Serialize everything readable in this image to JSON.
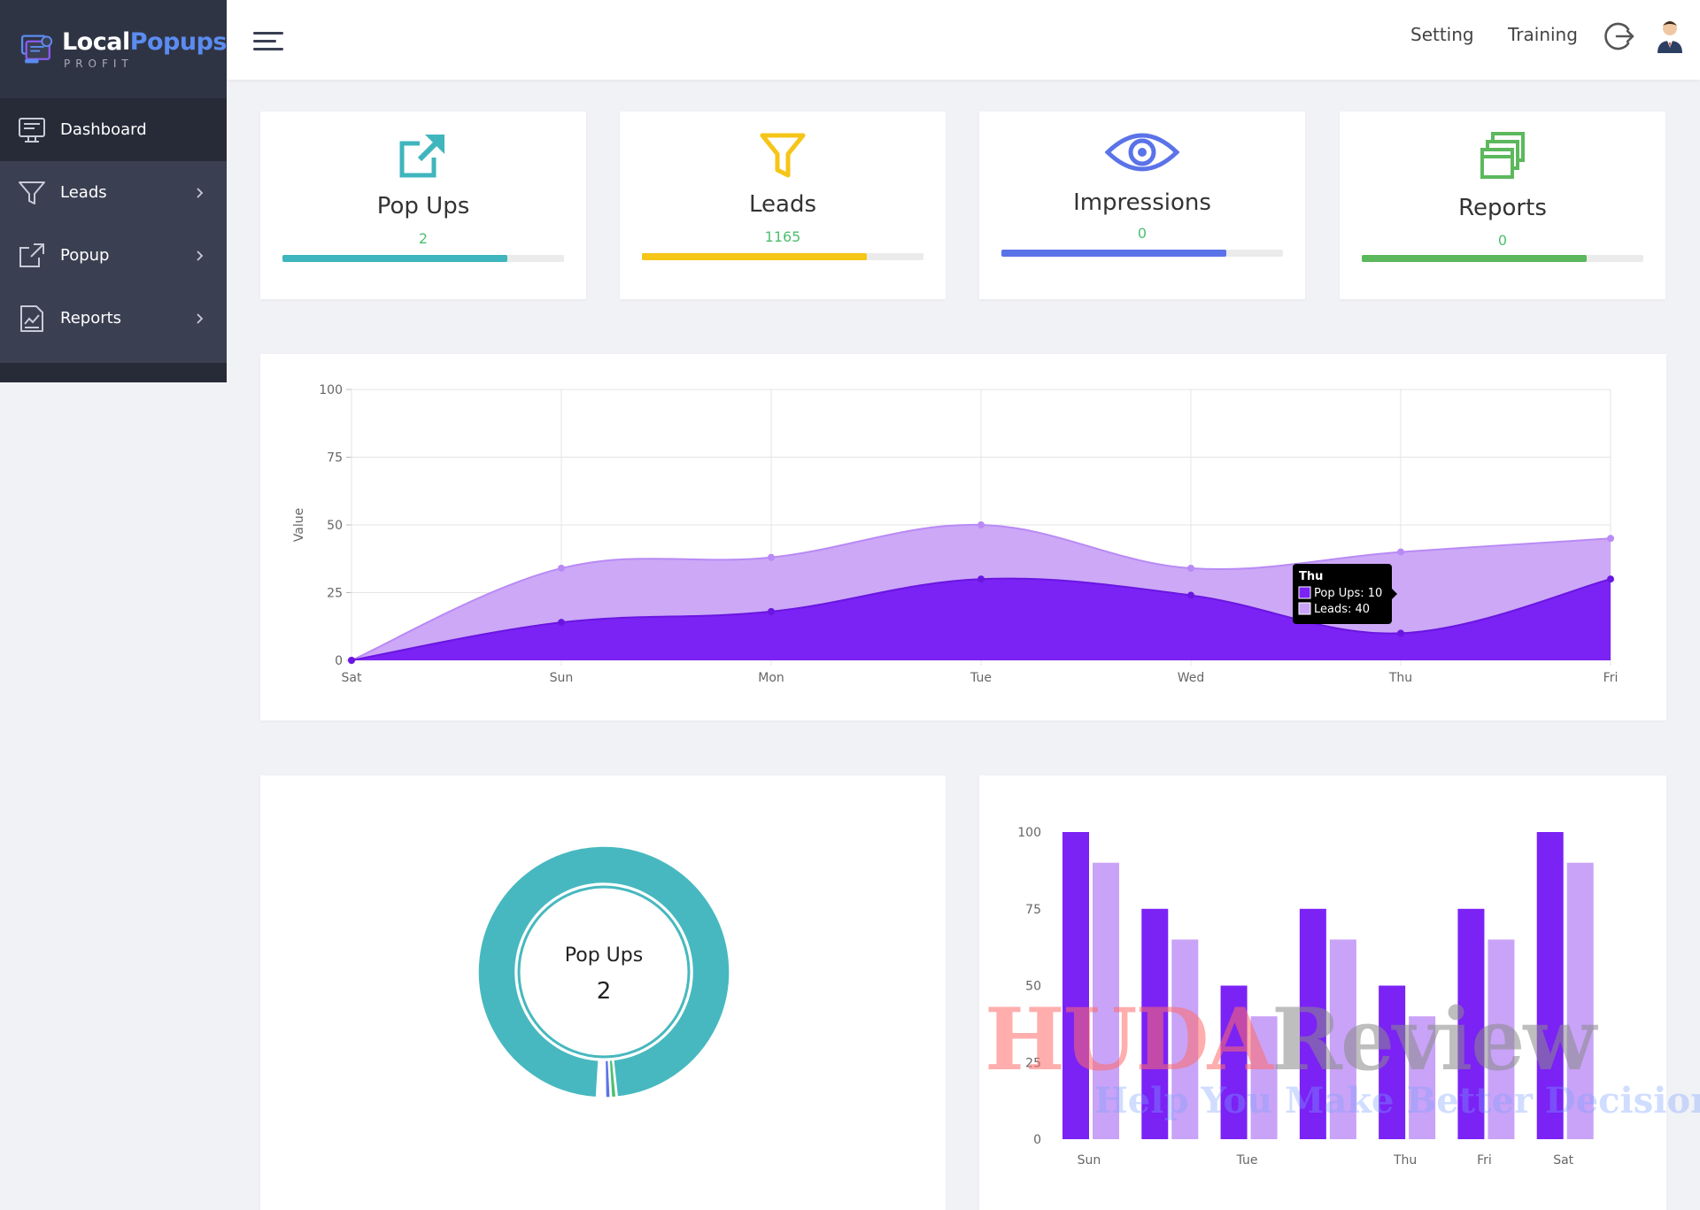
{
  "brand": {
    "name_part1": "Local",
    "name_part2": "Popups",
    "tagline": "PROFIT"
  },
  "sidebar": {
    "items": [
      {
        "label": "Dashboard",
        "icon": "monitor-icon",
        "active": true,
        "has_children": false
      },
      {
        "label": "Leads",
        "icon": "funnel-icon",
        "active": false,
        "has_children": true
      },
      {
        "label": "Popup",
        "icon": "external-link-icon",
        "active": false,
        "has_children": true
      },
      {
        "label": "Reports",
        "icon": "report-document-icon",
        "active": false,
        "has_children": true
      }
    ]
  },
  "header": {
    "menu_icon": "hamburger-icon",
    "links": [
      "Setting",
      "Training"
    ],
    "logout_icon": "logout-icon",
    "avatar_icon": "user-avatar-icon"
  },
  "stats": [
    {
      "label": "Pop Ups",
      "value": "2",
      "icon": "external-link-icon",
      "color": "#3fb5bd",
      "fill_percent": 80
    },
    {
      "label": "Leads",
      "value": "1165",
      "icon": "funnel-icon",
      "color": "#f5c518",
      "fill_percent": 80
    },
    {
      "label": "Impressions",
      "value": "0",
      "icon": "eye-icon",
      "color": "#5b73e8",
      "fill_percent": 80
    },
    {
      "label": "Reports",
      "value": "0",
      "icon": "stacked-windows-icon",
      "color": "#5cb85c",
      "fill_percent": 80
    }
  ],
  "chart_data": [
    {
      "type": "area",
      "categories": [
        "Sat",
        "Sun",
        "Mon",
        "Tue",
        "Wed",
        "Thu",
        "Fri"
      ],
      "series": [
        {
          "name": "Pop Ups",
          "values": [
            0,
            14,
            18,
            30,
            24,
            10,
            30
          ],
          "color": "#7b22f5"
        },
        {
          "name": "Leads",
          "values": [
            0,
            34,
            38,
            50,
            34,
            40,
            45
          ],
          "color": "#c9a3f7"
        }
      ],
      "ylabel": "Value",
      "ylim": [
        0,
        100
      ],
      "yticks": [
        0,
        25,
        50,
        75,
        100
      ],
      "grid": true,
      "tooltip": {
        "title": "Thu",
        "lines": [
          "Pop Ups: 10",
          "Leads: 40"
        ]
      }
    },
    {
      "type": "pie",
      "center_label": "Pop Ups",
      "center_value": "2",
      "slices": [
        {
          "name": "Pop Ups",
          "value": 2,
          "color": "#47b8bf"
        },
        {
          "name": "Leads",
          "value": 0.012,
          "color": "#4cbf6f"
        },
        {
          "name": "Impressions",
          "value": 0.012,
          "color": "#5b73e8"
        }
      ]
    },
    {
      "type": "bar",
      "categories": [
        "Sun",
        "",
        "Tue",
        "",
        "Thu",
        "Fri",
        "Sat"
      ],
      "series": [
        {
          "name": "Pop Ups",
          "values": [
            100,
            75,
            50,
            75,
            50,
            75,
            100
          ],
          "color": "#7b22f5"
        },
        {
          "name": "Leads",
          "values": [
            90,
            65,
            40,
            65,
            40,
            65,
            90
          ],
          "color": "#c9a3f7"
        }
      ],
      "ylim": [
        0,
        100
      ],
      "yticks": [
        0,
        25,
        50,
        75,
        100
      ]
    }
  ],
  "watermark": {
    "text_part1": "HUDA",
    "text_part2": "Review",
    "tagline": "Help You Make Better Decisions"
  }
}
